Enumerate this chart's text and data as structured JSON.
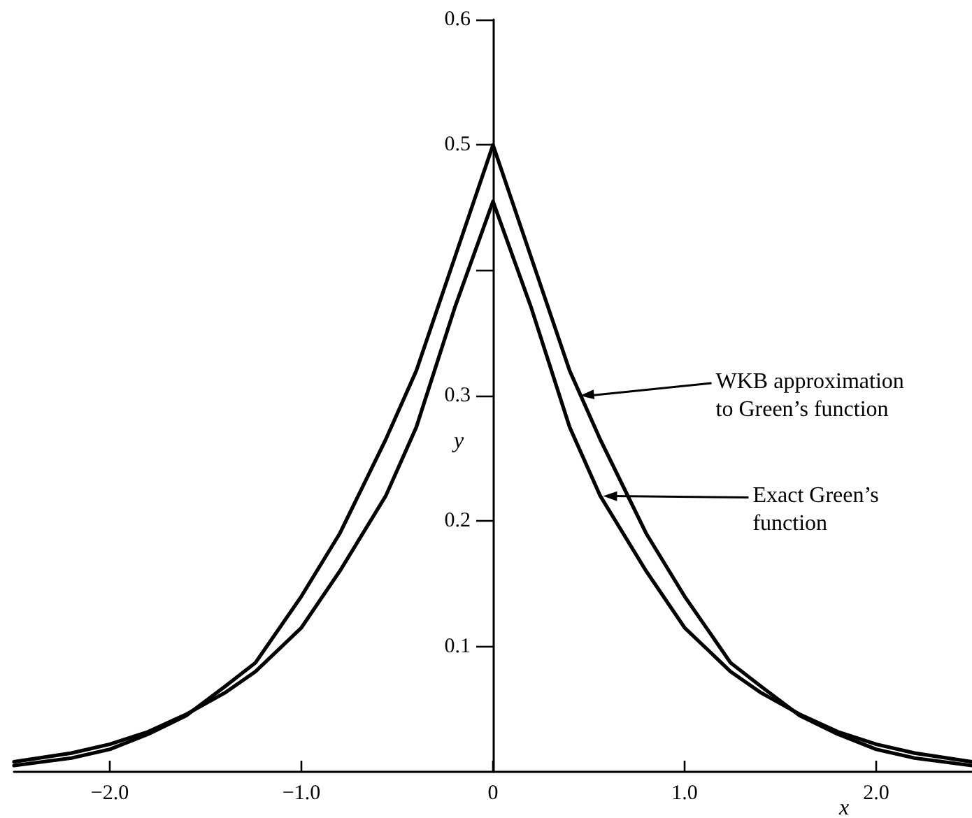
{
  "chart_data": {
    "type": "line",
    "xlabel": "x",
    "ylabel": "y",
    "x": [
      -2.5,
      -2.2,
      -2.0,
      -1.8,
      -1.6,
      -1.4,
      -1.24,
      -1.0,
      -0.8,
      -0.56,
      -0.4,
      -0.2,
      0,
      0.2,
      0.4,
      0.56,
      0.8,
      1.0,
      1.24,
      1.4,
      1.6,
      1.8,
      2.0,
      2.2,
      2.5
    ],
    "series": [
      {
        "color": "#000000",
        "values": [
          0.005,
          0.011,
          0.018,
          0.03,
          0.045,
          0.068,
          0.087,
          0.14,
          0.19,
          0.265,
          0.32,
          0.41,
          0.5,
          0.41,
          0.32,
          0.265,
          0.19,
          0.14,
          0.087,
          0.068,
          0.045,
          0.03,
          0.018,
          0.011,
          0.005
        ]
      },
      {
        "color": "#000000",
        "values": [
          0.008,
          0.015,
          0.022,
          0.032,
          0.046,
          0.063,
          0.08,
          0.115,
          0.16,
          0.22,
          0.275,
          0.37,
          0.455,
          0.37,
          0.275,
          0.22,
          0.16,
          0.115,
          0.08,
          0.063,
          0.046,
          0.032,
          0.022,
          0.015,
          0.008
        ]
      }
    ],
    "xlim": [
      -2.5,
      2.5
    ],
    "xticks": [
      {
        "value": -2,
        "label": "−2.0"
      },
      {
        "value": -1,
        "label": "−1.0"
      },
      0,
      {
        "value": 1,
        "label": "1.0"
      },
      {
        "value": 2,
        "label": "2.0"
      }
    ],
    "ylim": [
      0,
      0.6
    ],
    "yticks": [
      0.1,
      0.2,
      0.3,
      {
        "value": 0.4,
        "label": null
      },
      0.5,
      0.6
    ],
    "marker": "none",
    "line_style": "solid",
    "grid": false,
    "annotations": [
      {
        "text": "WKB approximation\nto Green’s function",
        "x": 0.44,
        "y": 0.3
      },
      {
        "text": "Exact Green’s\nfunction",
        "x": 0.56,
        "y": 0.22
      }
    ]
  }
}
